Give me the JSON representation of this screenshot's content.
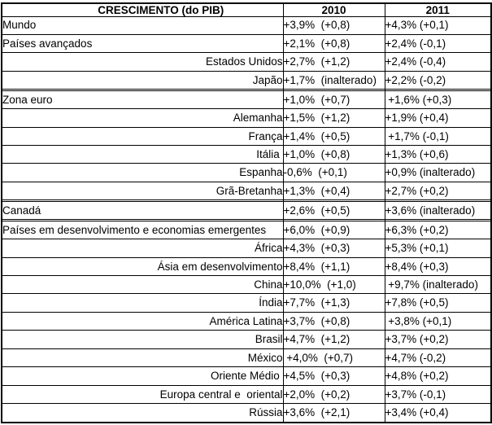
{
  "colors": {
    "background": "#ffffff",
    "border": "#000000",
    "text": "#000000"
  },
  "chart_data": {
    "type": "table",
    "title": "CRESCIMENTO (do PIB)",
    "columns": [
      "CRESCIMENTO (do PIB)",
      "2010",
      "2011"
    ],
    "rows": [
      {
        "label": "Mundo",
        "level": "main",
        "y2010": "+3,9%  (+0,8)",
        "y2011": "+4,3% (+0,1)"
      },
      {
        "label": "Países avançados",
        "level": "main",
        "y2010": "+2,1%  (+0,8)",
        "y2011": "+2,4% (-0,1)"
      },
      {
        "label": "Estados Unidos",
        "level": "sub",
        "y2010": "+2,7%  (+1,2)",
        "y2011": "+2,4% (-0,4)"
      },
      {
        "label": "Japão",
        "level": "sub",
        "y2010": "+1,7%  (inalterado)",
        "y2011": "+2,2% (-0,2)"
      },
      {
        "label": "",
        "level": "empty",
        "y2010": "",
        "y2011": ""
      },
      {
        "label": "Zona euro",
        "level": "main",
        "y2010": "+1,0%  (+0,7)",
        "y2011": " +1,6% (+0,3)"
      },
      {
        "label": "Alemanha",
        "level": "sub",
        "y2010": "+1,5%  (+1,2)",
        "y2011": "+1,9% (+0,4)"
      },
      {
        "label": "França",
        "level": "sub",
        "y2010": "+1,4%  (+0,5)",
        "y2011": " +1,7% (-0,1)"
      },
      {
        "label": "Itália ",
        "level": "sub",
        "y2010": "+1,0%  (+0,8)",
        "y2011": "+1,3% (+0,6)"
      },
      {
        "label": "Espanha",
        "level": "sub",
        "y2010": "-0,6%  (+0,1)",
        "y2011": "+0,9% (inalterado)"
      },
      {
        "label": "Grã-Bretanha",
        "level": "sub",
        "y2010": "+1,3%  (+0,4)",
        "y2011": "+2,7% (+0,2)"
      },
      {
        "label": "",
        "level": "empty",
        "y2010": "",
        "y2011": ""
      },
      {
        "label": "Canadá",
        "level": "main",
        "y2010": "+2,6%  (+0,5)",
        "y2011": "+3,6% (inalterado)"
      },
      {
        "label": "",
        "level": "empty",
        "y2010": "",
        "y2011": ""
      },
      {
        "label": "Países em desenvolvimento e economias emergentes",
        "level": "main",
        "y2010": "+6,0%  (+0,9)",
        "y2011": "+6,3% (+0,2)"
      },
      {
        "label": "África",
        "level": "sub",
        "y2010": "+4,3%  (+0,3)",
        "y2011": "+5,3% (+0,1)"
      },
      {
        "label": "Ásia em desenvolvimento",
        "level": "sub",
        "y2010": "+8,4%  (+1,1)",
        "y2011": "+8,4% (+0,3)"
      },
      {
        "label": "China",
        "level": "sub",
        "y2010": "+10,0%  (+1,0)",
        "y2011": " +9,7% (inalterado)"
      },
      {
        "label": "Índia",
        "level": "sub",
        "y2010": "+7,7%  (+1,3)",
        "y2011": "+7,8% (+0,5)"
      },
      {
        "label": "América Latina",
        "level": "sub",
        "y2010": "+3,7%  (+0,8)",
        "y2011": " +3,8% (+0,1)"
      },
      {
        "label": "Brasil",
        "level": "sub",
        "y2010": "+4,7%  (+1,2)",
        "y2011": "+3,7% (+0,2)"
      },
      {
        "label": "México",
        "level": "sub",
        "y2010": " +4,0%  (+0,7)",
        "y2011": "+4,7% (-0,2)"
      },
      {
        "label": "Oriente Médio ",
        "level": "sub",
        "y2010": "+4,5%  (+0,3)",
        "y2011": "+4,8% (+0,2)"
      },
      {
        "label": "Europa central e  oriental",
        "level": "sub",
        "y2010": "+2,0%  (+0,2)",
        "y2011": "+3,7% (-0,1)"
      },
      {
        "label": "Rússia",
        "level": "sub",
        "y2010": "+3,6%  (+2,1)",
        "y2011": "+3,4% (+0,4)"
      }
    ]
  }
}
